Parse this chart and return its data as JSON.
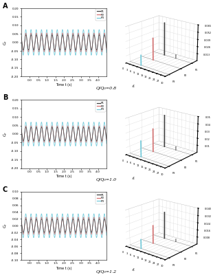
{
  "panels": [
    {
      "label": "A",
      "subtitle": "Q/Q₀=0.8",
      "time_ylim": [
        -0.2,
        0.2
      ],
      "time_yticks": [
        -0.2,
        -0.15,
        -0.1,
        -0.05,
        0.0,
        0.05,
        0.1,
        0.15,
        0.2
      ],
      "time_xticks": [
        0.0,
        0.5,
        1.0,
        1.5,
        2.0,
        2.5,
        3.0,
        3.5,
        4.0
      ],
      "freq_zticks": [
        0.013,
        0.026,
        0.039,
        0.052,
        0.065
      ],
      "freq_zmax": 0.065,
      "p3_amp": 0.075,
      "p2_amp": 0.055,
      "p1_amp": 0.045,
      "p1_freq_peak": 0.06,
      "p2_freq_peak": 0.04,
      "p3_freq_peak": 0.018,
      "p1_freq_peak2": 0.007
    },
    {
      "label": "B",
      "subtitle": "Q/Q₀=1.0",
      "time_ylim": [
        -0.2,
        0.2
      ],
      "time_yticks": [
        -0.2,
        -0.15,
        -0.1,
        -0.05,
        0.0,
        0.05,
        0.1,
        0.15,
        0.2
      ],
      "time_xticks": [
        0.0,
        0.5,
        1.0,
        1.5,
        2.0,
        2.5,
        3.0,
        3.5,
        4.0
      ],
      "freq_zticks": [
        0.01,
        0.02,
        0.03,
        0.04,
        0.05
      ],
      "freq_zmax": 0.05,
      "p3_amp": 0.07,
      "p2_amp": 0.048,
      "p1_amp": 0.04,
      "p1_freq_peak": 0.045,
      "p2_freq_peak": 0.032,
      "p3_freq_peak": 0.022,
      "p1_freq_peak2": 0.005
    },
    {
      "label": "C",
      "subtitle": "Q/Q₀=1.2",
      "time_ylim": [
        -0.1,
        0.1
      ],
      "time_yticks": [
        -0.1,
        -0.08,
        -0.06,
        -0.04,
        -0.02,
        0.0,
        0.02,
        0.04,
        0.06,
        0.08,
        0.1
      ],
      "time_xticks": [
        0.0,
        0.5,
        1.0,
        1.5,
        2.0,
        2.5,
        3.0,
        3.5,
        4.0
      ],
      "freq_zticks": [
        0.008,
        0.016,
        0.024,
        0.032,
        0.04
      ],
      "freq_zmax": 0.04,
      "p3_amp": 0.035,
      "p2_amp": 0.025,
      "p1_amp": 0.02,
      "p1_freq_peak": 0.03,
      "p2_freq_peak": 0.02,
      "p3_freq_peak": 0.01,
      "p1_freq_peak2": 0.003
    }
  ],
  "colors": {
    "P1": "#404040",
    "P2": "#d47070",
    "P3": "#70c8d8"
  },
  "wave_freq": 3.25,
  "time_xlabel": "Time t (s)",
  "freq_xlabel": "f_n"
}
